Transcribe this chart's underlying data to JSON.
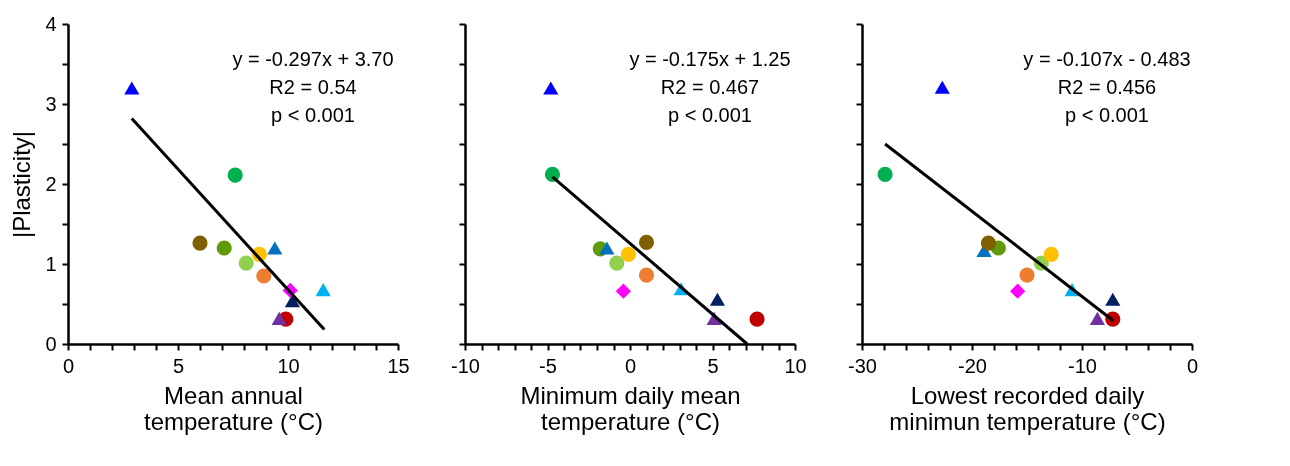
{
  "chart_data": [
    {
      "type": "scatter",
      "xlabel": "Mean annual temperature (°C)",
      "ylabel": "|Plasticity|",
      "xlim": [
        0,
        15
      ],
      "xticks": [
        0,
        {
          "value": 1,
          "label": null
        },
        {
          "value": 2,
          "label": null
        },
        {
          "value": 3,
          "label": null
        },
        {
          "value": 4,
          "label": null
        },
        5,
        {
          "value": 6,
          "label": null
        },
        {
          "value": 7,
          "label": null
        },
        {
          "value": 8,
          "label": null
        },
        {
          "value": 9,
          "label": null
        },
        10,
        {
          "value": 11,
          "label": null
        },
        {
          "value": 12,
          "label": null
        },
        {
          "value": 13,
          "label": null
        },
        {
          "value": 14,
          "label": null
        },
        15
      ],
      "ylim": [
        0,
        4
      ],
      "yticks": [
        0,
        {
          "value": 0.5,
          "label": null
        },
        1,
        {
          "value": 1.5,
          "label": null
        },
        2,
        {
          "value": 2.5,
          "label": null
        },
        3,
        {
          "value": 3.5,
          "label": null
        },
        4
      ],
      "grid": false,
      "legend": false,
      "annotations": [
        "y = -0.297x + 3.70",
        "R2 = 0.54",
        "p < 0.001"
      ],
      "series": [
        {
          "marker": "circle",
          "x": [
            7.6,
            6.0,
            7.1,
            8.1,
            8.7,
            8.9,
            9.9
          ],
          "values": [
            2.11,
            1.26,
            1.2,
            1.01,
            1.12,
            0.85,
            0.31
          ],
          "colors": [
            "#00b050",
            "#7f6000",
            "#5f9a0a",
            "#92d050",
            "#ffc000",
            "#ed7d31",
            "#c00000"
          ]
        },
        {
          "marker": "triangle",
          "x": [
            2.9,
            9.4,
            11.6,
            10.2,
            9.6
          ],
          "values": [
            3.2,
            1.2,
            0.68,
            0.54,
            0.32
          ],
          "colors": [
            "#0000ff",
            "#0070c0",
            "#00b0f0",
            "#002060",
            "#7030a0"
          ]
        },
        {
          "marker": "diamond",
          "x": [
            10.1
          ],
          "values": [
            0.67
          ],
          "colors": [
            "#ff00ff"
          ]
        },
        {
          "type": "line",
          "marker": "none",
          "color": "#000000",
          "x": [
            2.9,
            11.65
          ],
          "values": [
            2.82,
            0.18
          ]
        }
      ]
    },
    {
      "type": "scatter",
      "xlabel": "Minimum daily mean temperature (°C)",
      "xlim": [
        -10,
        10
      ],
      "xticks": [
        -10,
        {
          "value": -9,
          "label": null
        },
        {
          "value": -8,
          "label": null
        },
        {
          "value": -7,
          "label": null
        },
        {
          "value": -6,
          "label": null
        },
        -5,
        {
          "value": -4,
          "label": null
        },
        {
          "value": -3,
          "label": null
        },
        {
          "value": -2,
          "label": null
        },
        {
          "value": -1,
          "label": null
        },
        0,
        {
          "value": 1,
          "label": null
        },
        {
          "value": 2,
          "label": null
        },
        {
          "value": 3,
          "label": null
        },
        {
          "value": 4,
          "label": null
        },
        5,
        {
          "value": 6,
          "label": null
        },
        {
          "value": 7,
          "label": null
        },
        {
          "value": 8,
          "label": null
        },
        {
          "value": 9,
          "label": null
        },
        10
      ],
      "ylim": [
        0,
        4
      ],
      "yticks": [
        0,
        0.5,
        1,
        1.5,
        2,
        2.5,
        3,
        3.5,
        4
      ],
      "tick_labels": "x",
      "grid": false,
      "legend": false,
      "annotations": [
        "y = -0.175x + 1.25",
        "R2 = 0.467",
        "p < 0.001"
      ],
      "series": [
        {
          "marker": "circle",
          "x": [
            -4.7,
            -1.8,
            -0.8,
            -0.1,
            1.0,
            1.0,
            7.7
          ],
          "values": [
            2.12,
            1.19,
            1.01,
            1.12,
            1.27,
            0.86,
            0.31
          ],
          "colors": [
            "#00b050",
            "#5f9a0a",
            "#92d050",
            "#ffc000",
            "#7f6000",
            "#ed7d31",
            "#c00000"
          ]
        },
        {
          "marker": "triangle",
          "x": [
            -4.8,
            -1.4,
            3.1,
            5.3,
            5.1
          ],
          "values": [
            3.2,
            1.2,
            0.69,
            0.56,
            0.32
          ],
          "colors": [
            "#0000ff",
            "#0070c0",
            "#00b0f0",
            "#002060",
            "#7030a0"
          ]
        },
        {
          "marker": "diamond",
          "x": [
            -0.4
          ],
          "values": [
            0.66
          ],
          "colors": [
            "#ff00ff"
          ]
        },
        {
          "type": "line",
          "marker": "none",
          "color": "#000000",
          "x": [
            -4.7,
            7.1
          ],
          "values": [
            2.09,
            0
          ]
        }
      ]
    },
    {
      "type": "scatter",
      "xlabel": "Lowest recorded daily minimun temperature (°C)",
      "xlim": [
        -30,
        0
      ],
      "xticks": [
        -30,
        {
          "value": -28,
          "label": null
        },
        {
          "value": -26,
          "label": null
        },
        {
          "value": -24,
          "label": null
        },
        {
          "value": -22,
          "label": null
        },
        -20,
        {
          "value": -18,
          "label": null
        },
        {
          "value": -16,
          "label": null
        },
        {
          "value": -14,
          "label": null
        },
        {
          "value": -12,
          "label": null
        },
        -10,
        {
          "value": -8,
          "label": null
        },
        {
          "value": -6,
          "label": null
        },
        {
          "value": -4,
          "label": null
        },
        {
          "value": -2,
          "label": null
        },
        0
      ],
      "ylim": [
        0,
        4
      ],
      "yticks": [
        0,
        0.5,
        1,
        1.5,
        2,
        2.5,
        3,
        3.5,
        4
      ],
      "tick_labels": "x",
      "grid": false,
      "legend": false,
      "annotations": [
        "y = -0.107x - 0.483",
        "R2 = 0.456",
        "p < 0.001"
      ],
      "series": [
        {
          "marker": "triangle",
          "x": [
            -22.7,
            -18.9,
            -10.9,
            -7.2,
            -8.6
          ],
          "values": [
            3.21,
            1.17,
            0.68,
            0.56,
            0.32
          ],
          "colors": [
            "#0000ff",
            "#0070c0",
            "#00b0f0",
            "#002060",
            "#7030a0"
          ]
        },
        {
          "marker": "circle",
          "x": [
            -27.9,
            -17.6,
            -18.5,
            -13.7,
            -12.8,
            -15.0,
            -7.2
          ],
          "values": [
            2.12,
            1.2,
            1.26,
            1.01,
            1.12,
            0.86,
            0.31
          ],
          "colors": [
            "#00b050",
            "#5f9a0a",
            "#7f6000",
            "#92d050",
            "#ffc000",
            "#ed7d31",
            "#c00000"
          ]
        },
        {
          "marker": "diamond",
          "x": [
            -15.85
          ],
          "values": [
            0.66
          ],
          "colors": [
            "#ff00ff"
          ]
        },
        {
          "type": "line",
          "marker": "none",
          "color": "#000000",
          "x": [
            -27.9,
            -7.15
          ],
          "values": [
            2.5,
            0.29
          ]
        }
      ]
    }
  ]
}
